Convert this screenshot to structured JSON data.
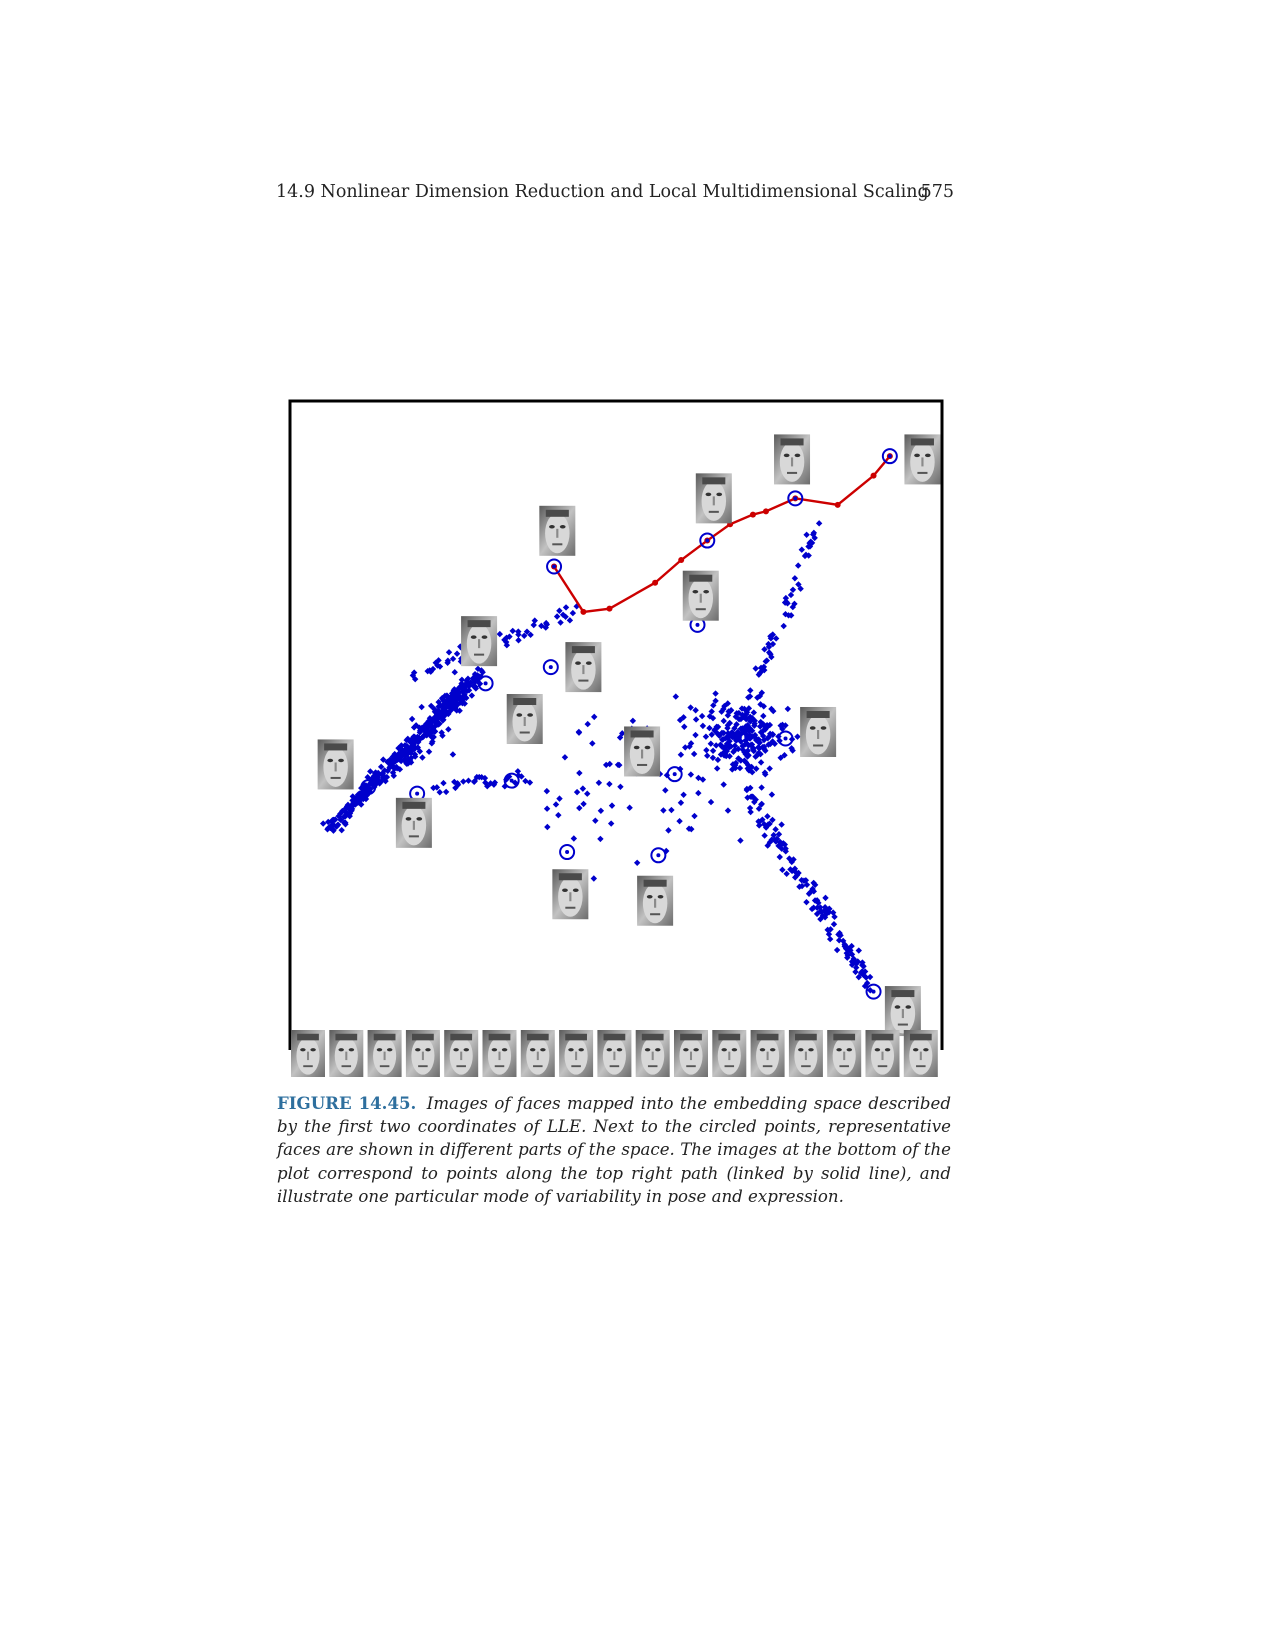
{
  "header": {
    "running_title": "14.9 Nonlinear Dimension Reduction and Local Multidimensional Scaling",
    "page_number": "575"
  },
  "figure": {
    "label": "FIGURE 14.45.",
    "caption": "Images of faces mapped into the embedding space described by the first two coordinates of LLE. Next to the circled points, representative faces are shown in different parts of the space. The images at the bottom of the plot correspond to points along the top right path (linked by solid line), and illustrate one particular mode of variability in pose and expression.",
    "colors": {
      "points": "#0000cc",
      "path": "#cc0000",
      "frame": "#000000"
    },
    "bottom_strip_image_count": 17
  },
  "chart_data": {
    "type": "scatter",
    "title": "",
    "xlabel": "",
    "ylabel": "",
    "axes_ticks": false,
    "xlim": [
      0,
      100
    ],
    "ylim": [
      0,
      100
    ],
    "clusters": [
      {
        "shape": "line",
        "from": [
          6,
          34
        ],
        "to": [
          29,
          58
        ],
        "count": 320,
        "spread": 1.0
      },
      {
        "shape": "line",
        "from": [
          15,
          42
        ],
        "to": [
          27,
          56
        ],
        "count": 120,
        "spread": 2.2
      },
      {
        "shape": "line",
        "from": [
          19,
          58
        ],
        "to": [
          45,
          68
        ],
        "count": 60,
        "spread": 1.6
      },
      {
        "shape": "blob",
        "center": [
          69,
          48
        ],
        "count": 240,
        "spread": 3.6
      },
      {
        "shape": "line",
        "from": [
          71,
          55
        ],
        "to": [
          81,
          81
        ],
        "count": 55,
        "spread": 1.1
      },
      {
        "shape": "line",
        "from": [
          70,
          40
        ],
        "to": [
          89,
          10
        ],
        "count": 140,
        "spread": 1.5
      },
      {
        "shape": "line",
        "from": [
          22,
          40
        ],
        "to": [
          36,
          42
        ],
        "count": 30,
        "spread": 1.4
      },
      {
        "shape": "scatter",
        "center": [
          50,
          42
        ],
        "count": 70,
        "spread": 9.0
      }
    ],
    "path_points": [
      [
        40.5,
        74.5
      ],
      [
        45,
        67.5
      ],
      [
        49,
        68
      ],
      [
        56,
        72
      ],
      [
        60,
        75.5
      ],
      [
        64,
        78.5
      ],
      [
        67.5,
        81
      ],
      [
        71,
        82.5
      ],
      [
        73,
        83
      ],
      [
        77.5,
        85
      ],
      [
        84,
        84
      ],
      [
        89.5,
        88.5
      ],
      [
        92,
        91.5
      ]
    ],
    "circled_points": [
      [
        40.5,
        74.5
      ],
      [
        64,
        78.5
      ],
      [
        77.5,
        85
      ],
      [
        92,
        91.5
      ],
      [
        62.5,
        65.5
      ],
      [
        40,
        59
      ],
      [
        30,
        56.5
      ],
      [
        12,
        40.5
      ],
      [
        19.5,
        39.5
      ],
      [
        34,
        41.5
      ],
      [
        42.5,
        30.5
      ],
      [
        56.5,
        30
      ],
      [
        59,
        42.5
      ],
      [
        76,
        48
      ],
      [
        89.5,
        9
      ]
    ],
    "face_thumbnails": [
      {
        "x": 41,
        "y": 80
      },
      {
        "x": 65,
        "y": 85
      },
      {
        "x": 77,
        "y": 91
      },
      {
        "x": 97,
        "y": 91
      },
      {
        "x": 63,
        "y": 70
      },
      {
        "x": 29,
        "y": 63
      },
      {
        "x": 45,
        "y": 59
      },
      {
        "x": 36,
        "y": 51
      },
      {
        "x": 7,
        "y": 44
      },
      {
        "x": 19,
        "y": 35
      },
      {
        "x": 54,
        "y": 46
      },
      {
        "x": 81,
        "y": 49
      },
      {
        "x": 43,
        "y": 24
      },
      {
        "x": 56,
        "y": 23
      },
      {
        "x": 94,
        "y": 6
      }
    ]
  }
}
